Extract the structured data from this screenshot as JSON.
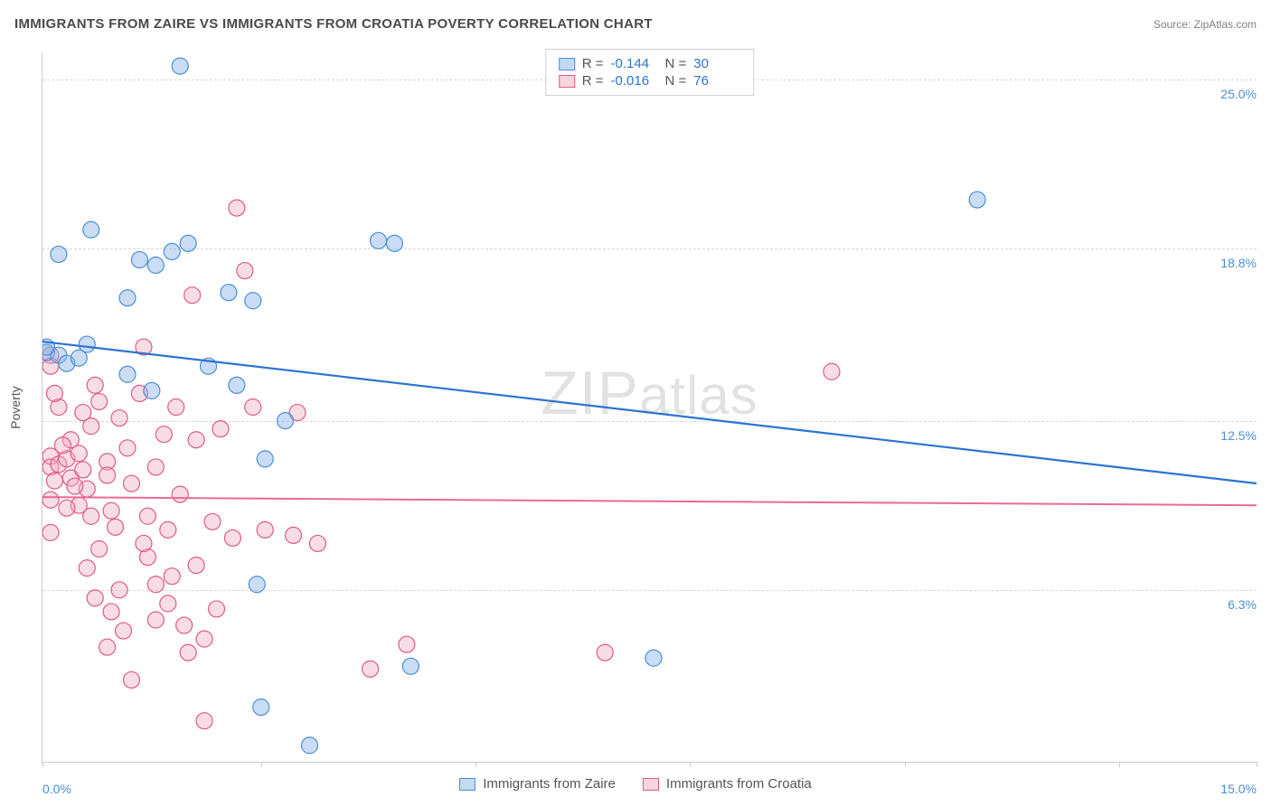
{
  "header": {
    "title": "IMMIGRANTS FROM ZAIRE VS IMMIGRANTS FROM CROATIA POVERTY CORRELATION CHART",
    "source_prefix": "Source: ",
    "source_name": "ZipAtlas.com"
  },
  "watermark": {
    "part1": "ZIP",
    "part2": "atlas"
  },
  "chart": {
    "type": "scatter",
    "background_color": "#ffffff",
    "grid_color": "#d8d8d8",
    "axis_color": "#cccccc",
    "xlim": [
      0,
      15
    ],
    "ylim": [
      0,
      26
    ],
    "y_gridlines": [
      6.3,
      12.5,
      18.8,
      25.0
    ],
    "y_tick_labels": [
      "6.3%",
      "12.5%",
      "18.8%",
      "25.0%"
    ],
    "x_ticks": [
      0,
      2.7,
      5.35,
      8.0,
      10.65,
      13.3,
      15.0
    ],
    "x_tick_labels": {
      "0": "0.0%",
      "15": "15.0%"
    },
    "y_axis_label": "Poverty",
    "point_radius": 9,
    "series": [
      {
        "name": "Immigrants from Zaire",
        "color_fill": "rgba(138,180,230,0.45)",
        "color_stroke": "#4a8fd8",
        "R": "-0.144",
        "N": "30",
        "trend": {
          "x1": 0,
          "y1": 15.4,
          "x2": 15,
          "y2": 10.2,
          "color": "#2b74d0",
          "width": 2.2
        },
        "points": [
          [
            1.7,
            25.5
          ],
          [
            0.6,
            19.5
          ],
          [
            1.2,
            18.4
          ],
          [
            1.4,
            18.2
          ],
          [
            1.05,
            17.0
          ],
          [
            0.2,
            18.6
          ],
          [
            0.05,
            15.0
          ],
          [
            0.2,
            14.9
          ],
          [
            0.55,
            15.3
          ],
          [
            2.3,
            17.2
          ],
          [
            2.6,
            16.9
          ],
          [
            4.15,
            19.1
          ],
          [
            4.35,
            19.0
          ],
          [
            1.35,
            13.6
          ],
          [
            2.4,
            13.8
          ],
          [
            3.0,
            12.5
          ],
          [
            2.75,
            11.1
          ],
          [
            2.65,
            6.5
          ],
          [
            2.7,
            2.0
          ],
          [
            3.3,
            0.6
          ],
          [
            4.55,
            3.5
          ],
          [
            7.55,
            3.8
          ],
          [
            11.55,
            20.6
          ],
          [
            0.3,
            14.6
          ],
          [
            0.05,
            15.2
          ],
          [
            1.05,
            14.2
          ],
          [
            1.8,
            19.0
          ],
          [
            1.6,
            18.7
          ],
          [
            2.05,
            14.5
          ],
          [
            0.45,
            14.8
          ]
        ]
      },
      {
        "name": "Immigrants from Croatia",
        "color_fill": "rgba(240,170,190,0.40)",
        "color_stroke": "#e05a85",
        "R": "-0.016",
        "N": "76",
        "trend": {
          "x1": 0,
          "y1": 9.7,
          "x2": 15,
          "y2": 9.4,
          "color": "#e86b95",
          "width": 2
        },
        "points": [
          [
            0.1,
            14.9
          ],
          [
            0.1,
            14.5
          ],
          [
            0.2,
            13.0
          ],
          [
            0.1,
            11.2
          ],
          [
            0.1,
            10.8
          ],
          [
            0.15,
            10.3
          ],
          [
            0.1,
            9.6
          ],
          [
            0.2,
            10.9
          ],
          [
            0.3,
            11.1
          ],
          [
            0.35,
            10.4
          ],
          [
            0.45,
            11.3
          ],
          [
            0.5,
            10.7
          ],
          [
            0.55,
            10.0
          ],
          [
            0.45,
            9.4
          ],
          [
            0.1,
            8.4
          ],
          [
            0.15,
            13.5
          ],
          [
            0.6,
            12.3
          ],
          [
            0.7,
            13.2
          ],
          [
            0.8,
            11.0
          ],
          [
            0.8,
            10.5
          ],
          [
            0.85,
            9.2
          ],
          [
            0.9,
            8.6
          ],
          [
            0.7,
            7.8
          ],
          [
            0.55,
            7.1
          ],
          [
            0.65,
            6.0
          ],
          [
            0.95,
            6.3
          ],
          [
            0.85,
            5.5
          ],
          [
            1.0,
            4.8
          ],
          [
            0.8,
            4.2
          ],
          [
            1.1,
            3.0
          ],
          [
            1.2,
            13.5
          ],
          [
            1.25,
            15.2
          ],
          [
            1.3,
            9.0
          ],
          [
            1.3,
            7.5
          ],
          [
            1.4,
            6.5
          ],
          [
            1.4,
            5.2
          ],
          [
            1.5,
            12.0
          ],
          [
            1.55,
            8.5
          ],
          [
            1.55,
            5.8
          ],
          [
            1.7,
            9.8
          ],
          [
            1.75,
            5.0
          ],
          [
            1.8,
            4.0
          ],
          [
            1.85,
            17.1
          ],
          [
            1.9,
            11.8
          ],
          [
            1.9,
            7.2
          ],
          [
            2.0,
            4.5
          ],
          [
            2.0,
            1.5
          ],
          [
            2.1,
            8.8
          ],
          [
            2.15,
            5.6
          ],
          [
            2.2,
            12.2
          ],
          [
            2.35,
            8.2
          ],
          [
            2.4,
            20.3
          ],
          [
            2.5,
            18.0
          ],
          [
            2.6,
            13.0
          ],
          [
            2.75,
            8.5
          ],
          [
            3.1,
            8.3
          ],
          [
            3.15,
            12.8
          ],
          [
            3.4,
            8.0
          ],
          [
            4.05,
            3.4
          ],
          [
            4.5,
            4.3
          ],
          [
            6.95,
            4.0
          ],
          [
            9.75,
            14.3
          ],
          [
            0.35,
            11.8
          ],
          [
            0.5,
            12.8
          ],
          [
            0.65,
            13.8
          ],
          [
            0.95,
            12.6
          ],
          [
            1.05,
            11.5
          ],
          [
            1.1,
            10.2
          ],
          [
            1.25,
            8.0
          ],
          [
            1.4,
            10.8
          ],
          [
            1.6,
            6.8
          ],
          [
            1.65,
            13.0
          ],
          [
            0.4,
            10.1
          ],
          [
            0.3,
            9.3
          ],
          [
            0.25,
            11.6
          ],
          [
            0.6,
            9.0
          ]
        ]
      }
    ]
  },
  "legend_top": {
    "r_label": "R =",
    "n_label": "N ="
  },
  "legend_bottom": {
    "items": [
      "Immigrants from Zaire",
      "Immigrants from Croatia"
    ]
  }
}
